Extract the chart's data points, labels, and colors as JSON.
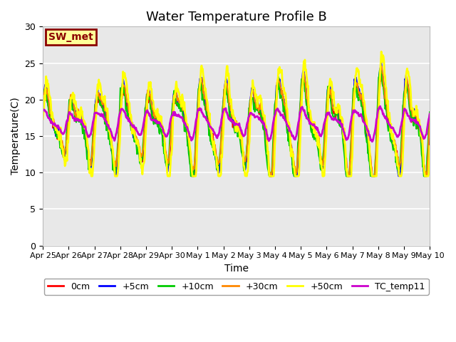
{
  "title": "Water Temperature Profile B",
  "xlabel": "Time",
  "ylabel": "Temperature(C)",
  "ylim": [
    0,
    30
  ],
  "yticks": [
    0,
    5,
    10,
    15,
    20,
    25,
    30
  ],
  "annotation_text": "SW_met",
  "annotation_box_color": "#FFFF99",
  "annotation_border_color": "#8B0000",
  "series": {
    "0cm": {
      "color": "#FF0000",
      "lw": 1.5
    },
    "+5cm": {
      "color": "#0000FF",
      "lw": 1.5
    },
    "+10cm": {
      "color": "#00CC00",
      "lw": 1.5
    },
    "+30cm": {
      "color": "#FF8800",
      "lw": 1.5
    },
    "+50cm": {
      "color": "#FFFF00",
      "lw": 2.0
    },
    "TC_temp11": {
      "color": "#CC00CC",
      "lw": 2.0
    }
  },
  "bg_color": "#E8E8E8",
  "fig_bg": "#FFFFFF",
  "x_labels": [
    "Apr 25",
    "Apr 26",
    "Apr 27",
    "Apr 28",
    "Apr 29",
    "Apr 30",
    "May 1",
    "May 2",
    "May 3",
    "May 4",
    "May 5",
    "May 6",
    "May 7",
    "May 8",
    "May 9",
    "May 10"
  ],
  "x_label_fontsize": 8,
  "title_fontsize": 13,
  "legend_fontsize": 9,
  "n_days": 15,
  "pts_per_day": 48
}
